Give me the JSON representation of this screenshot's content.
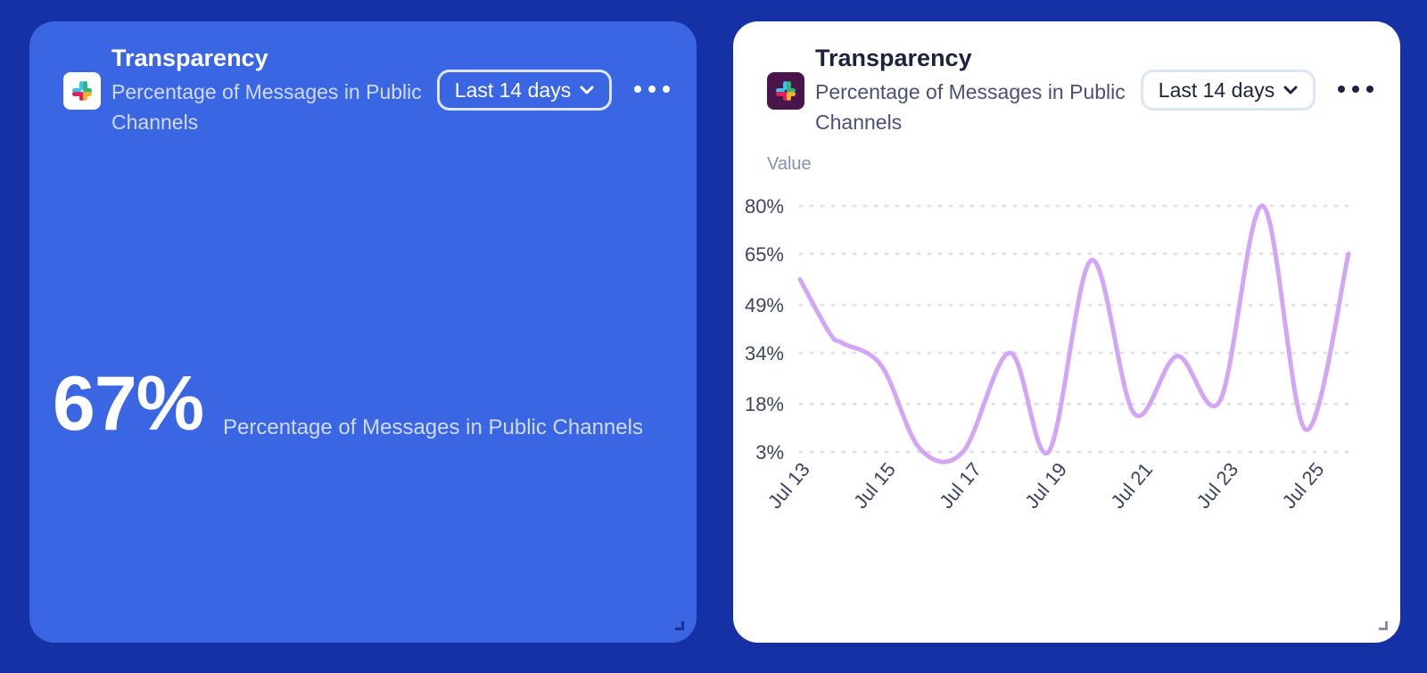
{
  "cards": [
    {
      "title": "Transparency",
      "subtitle": "Percentage of Messages in Public Channels",
      "range_label": "Last 14 days",
      "value": "67%",
      "value_label": "Percentage of Messages in Public Channels"
    },
    {
      "title": "Transparency",
      "subtitle": "Percentage of Messages in Public Channels",
      "range_label": "Last 14 days"
    }
  ],
  "chart_data": {
    "type": "line",
    "ylabel": "Value",
    "y_ticks": [
      "80%",
      "65%",
      "49%",
      "34%",
      "18%",
      "3%"
    ],
    "y_tick_values": [
      80,
      65,
      49,
      34,
      18,
      3
    ],
    "ylim": [
      3,
      80
    ],
    "x_ticks": [
      "Jul 13",
      "Jul 15",
      "Jul 17",
      "Jul 19",
      "Jul 21",
      "Jul 23",
      "Jul 25"
    ],
    "x": [
      "Jul 13",
      "Jul 14",
      "Jul 14",
      "Jul 15",
      "Jul 16",
      "Jul 17",
      "Jul 18",
      "Jul 19",
      "Jul 20",
      "Jul 21",
      "Jul 22",
      "Jul 23",
      "Jul 24",
      "Jul 25",
      "Jul 26"
    ],
    "x_index": [
      0,
      0.7,
      1.0,
      1.9,
      2.8,
      3.8,
      4.9,
      5.8,
      6.8,
      7.8,
      8.8,
      9.8,
      10.8,
      11.8,
      12.8
    ],
    "values": [
      57,
      40,
      37,
      30,
      4,
      3,
      34,
      3,
      63,
      15,
      33,
      19,
      80,
      10,
      65
    ],
    "series_color": "#d3a5f7",
    "grid": true
  }
}
